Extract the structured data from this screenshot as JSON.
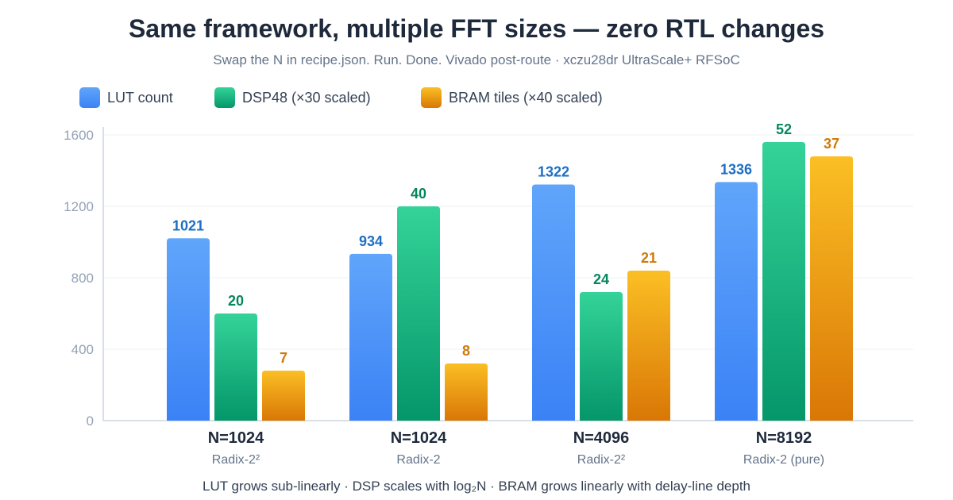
{
  "title": "Same framework, multiple FFT sizes — zero RTL changes",
  "subtitle": "Swap the N in recipe.json. Run. Done. Vivado post-route · xczu28dr UltraScale+ RFSoC",
  "footer": "LUT grows sub-linearly · DSP scales with log₂N · BRAM grows linearly with delay-line depth",
  "colors": {
    "lut": [
      "#60a5fa",
      "#3b82f6"
    ],
    "dsp": [
      "#34d399",
      "#059669"
    ],
    "bram": [
      "#fbbf24",
      "#d97706"
    ],
    "lut_label": "#1d6fc4",
    "dsp_label": "#05865f",
    "bram_label": "#d07a0b",
    "axis_text": "#94a3b8",
    "category_text": "#1e293b",
    "sublabel_text": "#64748b"
  },
  "chart_data": {
    "type": "bar",
    "ylim": [
      0,
      1600
    ],
    "yticks": [
      0,
      400,
      800,
      1200,
      1600
    ],
    "grid": true,
    "legend_position": "top-left",
    "categories": [
      "N=1024",
      "N=1024",
      "N=4096",
      "N=8192"
    ],
    "sublabels": [
      "Radix-2²",
      "Radix-2",
      "Radix-2²",
      "Radix-2 (pure)"
    ],
    "series": [
      {
        "name": "LUT count",
        "key": "lut",
        "values": [
          1021,
          934,
          1322,
          1336
        ],
        "labels": [
          "1021",
          "934",
          "1322",
          "1336"
        ]
      },
      {
        "name": "DSP48 (×30 scaled)",
        "key": "dsp",
        "values": [
          600,
          1200,
          720,
          1560
        ],
        "labels": [
          "20",
          "40",
          "24",
          "52"
        ]
      },
      {
        "name": "BRAM tiles (×40 scaled)",
        "key": "bram",
        "values": [
          280,
          320,
          840,
          1480
        ],
        "labels": [
          "7",
          "8",
          "21",
          "37"
        ]
      }
    ]
  }
}
